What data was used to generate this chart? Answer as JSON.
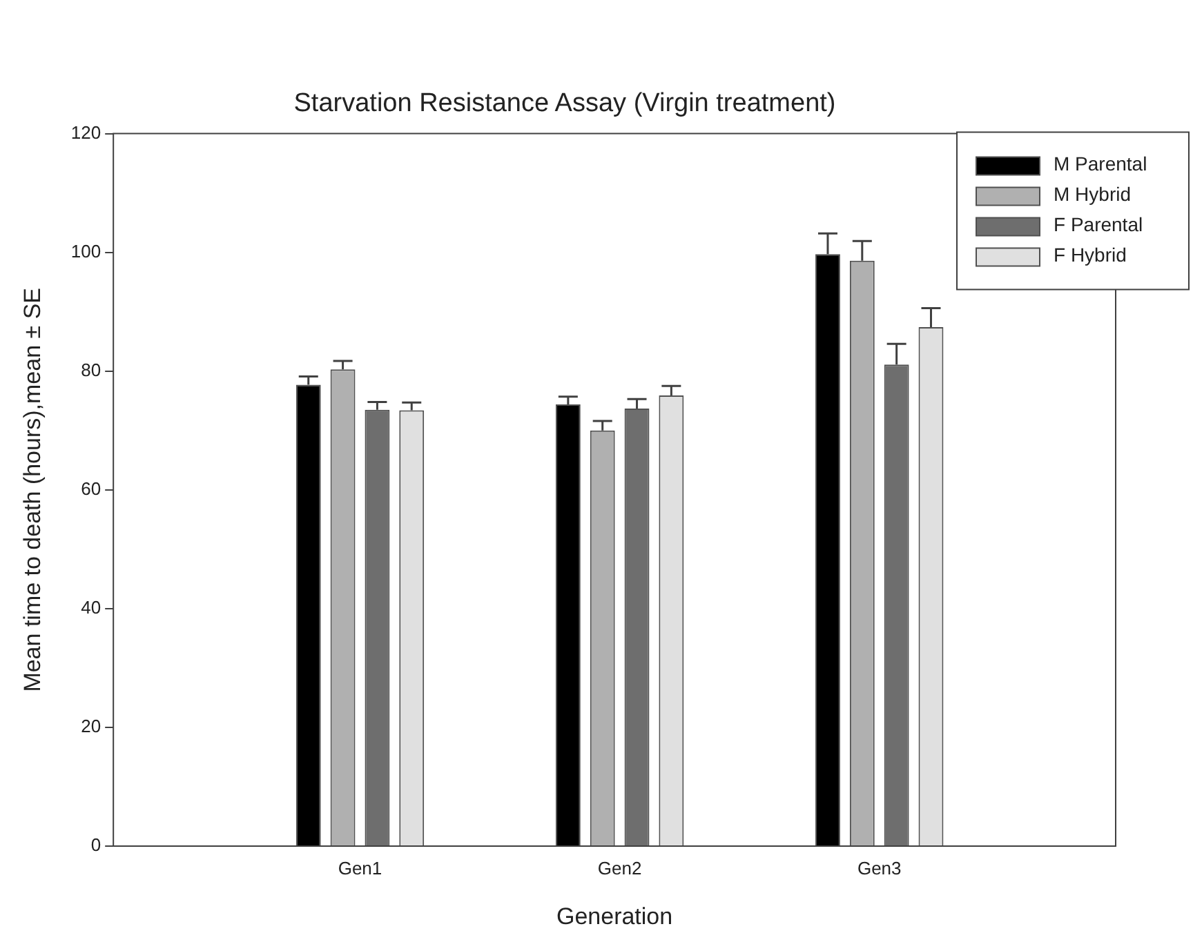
{
  "chart_data": {
    "type": "bar",
    "title": "Starvation Resistance Assay (Virgin treatment)",
    "xlabel": "Generation",
    "ylabel": "Mean time to death (hours),mean ± SE",
    "categories": [
      "Gen1",
      "Gen2",
      "Gen3"
    ],
    "series": [
      {
        "name": "M Parental",
        "color": "#000000",
        "values": [
          77.7,
          74.4,
          99.7
        ],
        "errors": [
          [
            77.7,
            79.1
          ],
          [
            74.4,
            75.7
          ],
          [
            99.7,
            103.2
          ]
        ]
      },
      {
        "name": "M Hybrid",
        "color": "#b0b0b0",
        "values": [
          80.3,
          70.0,
          98.6
        ],
        "errors": [
          [
            80.3,
            81.7
          ],
          [
            70.0,
            71.6
          ],
          [
            98.6,
            101.9
          ]
        ]
      },
      {
        "name": "F Parental",
        "color": "#6e6e6e",
        "values": [
          73.5,
          73.7,
          81.1
        ],
        "errors": [
          [
            73.5,
            74.8
          ],
          [
            73.7,
            75.3
          ],
          [
            81.1,
            84.6
          ]
        ]
      },
      {
        "name": "F Hybrid",
        "color": "#e0e0e0",
        "values": [
          73.4,
          75.9,
          87.4
        ],
        "errors": [
          [
            73.4,
            74.7
          ],
          [
            75.9,
            77.5
          ],
          [
            87.4,
            90.6
          ]
        ]
      }
    ],
    "ylim": [
      0,
      120
    ],
    "yticks": [
      0,
      20,
      40,
      60,
      80,
      100,
      120
    ],
    "grid": false,
    "legend": "top right"
  }
}
